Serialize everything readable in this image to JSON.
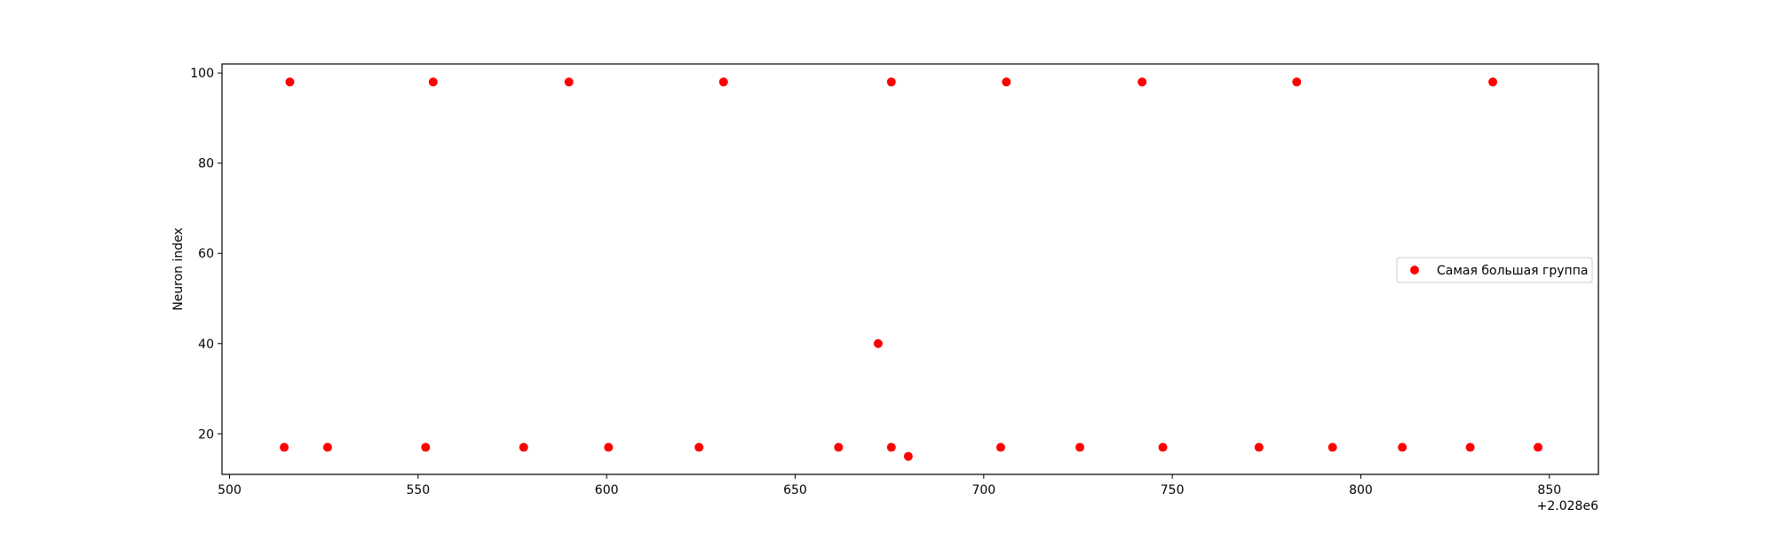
{
  "chart_data": {
    "type": "scatter",
    "title": "",
    "xlabel": "",
    "ylabel": "Neuron index",
    "x_offset_label": "+2.028e6",
    "xlim": [
      498,
      863
    ],
    "ylim": [
      11,
      102
    ],
    "x_ticks": [
      500,
      550,
      600,
      650,
      700,
      750,
      800,
      850
    ],
    "y_ticks": [
      20,
      40,
      60,
      80,
      100
    ],
    "grid": false,
    "legend_position": "center-right",
    "series": [
      {
        "name": "Самая большая группа",
        "color": "#ff0000",
        "marker": "circle",
        "points": [
          {
            "x": 514.5,
            "y": 17
          },
          {
            "x": 516,
            "y": 98
          },
          {
            "x": 526,
            "y": 17
          },
          {
            "x": 552,
            "y": 17
          },
          {
            "x": 554,
            "y": 98
          },
          {
            "x": 578,
            "y": 17
          },
          {
            "x": 590,
            "y": 98
          },
          {
            "x": 600.5,
            "y": 17
          },
          {
            "x": 624.5,
            "y": 17
          },
          {
            "x": 631,
            "y": 98
          },
          {
            "x": 661.5,
            "y": 17
          },
          {
            "x": 672,
            "y": 40
          },
          {
            "x": 675.5,
            "y": 98
          },
          {
            "x": 675.5,
            "y": 17
          },
          {
            "x": 680,
            "y": 15
          },
          {
            "x": 704.5,
            "y": 17
          },
          {
            "x": 706,
            "y": 98
          },
          {
            "x": 725.5,
            "y": 17
          },
          {
            "x": 742,
            "y": 98
          },
          {
            "x": 747.5,
            "y": 17
          },
          {
            "x": 773,
            "y": 17
          },
          {
            "x": 783,
            "y": 98
          },
          {
            "x": 792.5,
            "y": 17
          },
          {
            "x": 811,
            "y": 17
          },
          {
            "x": 829,
            "y": 17
          },
          {
            "x": 835,
            "y": 98
          },
          {
            "x": 847,
            "y": 17
          }
        ]
      }
    ]
  }
}
